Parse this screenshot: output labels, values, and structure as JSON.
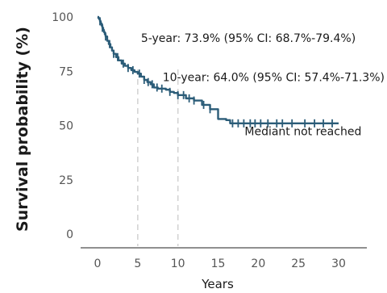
{
  "chart_data": {
    "type": "line",
    "title": "",
    "xlabel": "Years",
    "ylabel": "Survival probability (%)",
    "xlim": [
      -1.5,
      32
    ],
    "ylim": [
      -3,
      101
    ],
    "x_ticks": [
      0,
      5,
      10,
      15,
      20,
      25,
      30
    ],
    "y_ticks": [
      0,
      25,
      50,
      75,
      100
    ],
    "grid": false,
    "reference_lines_x": [
      5,
      10
    ],
    "series": [
      {
        "x": [
          0,
          0.1,
          0.2,
          0.3,
          0.4,
          0.5,
          0.6,
          0.7,
          0.8,
          0.9,
          1.0,
          1.2,
          1.4,
          1.6,
          1.8,
          2.0,
          2.3,
          2.6,
          3.0,
          3.4,
          3.8,
          4.2,
          4.6,
          5.0,
          5.4,
          5.8,
          6.2,
          6.6,
          7.0,
          7.5,
          8.0,
          8.5,
          9.0,
          9.5,
          10.0,
          11.0,
          12.0,
          13.0,
          14.0,
          15.0,
          16.0,
          16.5,
          17.0,
          30.0
        ],
        "y": [
          100,
          99.5,
          99,
          98,
          97,
          96,
          95,
          94,
          93,
          92,
          91,
          89,
          87.5,
          86,
          84.5,
          83,
          81.5,
          80,
          78.5,
          77.5,
          76.5,
          75.5,
          74.7,
          73.9,
          72.5,
          71,
          70,
          69,
          67.5,
          67,
          67,
          66.5,
          65.5,
          65,
          64,
          62.5,
          61.5,
          59.5,
          57.5,
          53,
          52.5,
          51,
          51,
          51
        ]
      }
    ],
    "censor_times": [
      0.3,
      0.6,
      1.0,
      1.5,
      2.0,
      2.5,
      3.2,
      3.8,
      4.4,
      5.2,
      5.8,
      6.3,
      6.8,
      7.4,
      8.0,
      9.0,
      10.0,
      10.7,
      11.4,
      12.0,
      13.2,
      14.0,
      16.8,
      17.5,
      18.2,
      19.0,
      19.6,
      20.3,
      21.2,
      22.3,
      23.0,
      24.2,
      25.8,
      27.0,
      28.1,
      29.2
    ],
    "annotations": [
      {
        "text": "5-year: 73.9% (95% CI: 68.7%-79.4%)",
        "x": 5.4,
        "y": 88.5
      },
      {
        "text": "10-year: 64.0% (95% CI: 57.4%-71.3%)",
        "x": 8.1,
        "y": 70.5
      },
      {
        "text": "Mediant not reached",
        "x": 18.3,
        "y": 45.5
      }
    ]
  }
}
